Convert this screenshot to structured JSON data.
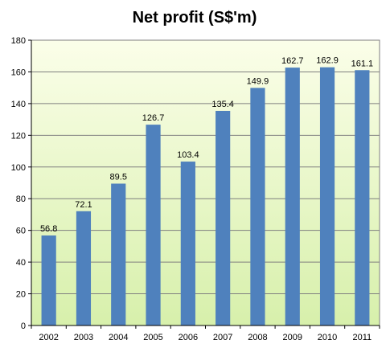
{
  "chart_data": {
    "type": "bar",
    "title": "Net profit (S$'m)",
    "xlabel": "",
    "ylabel": "",
    "categories": [
      "2002",
      "2003",
      "2004",
      "2005",
      "2006",
      "2007",
      "2008",
      "2009",
      "2010",
      "2011"
    ],
    "values": [
      56.8,
      72.1,
      89.5,
      126.7,
      103.4,
      135.4,
      149.9,
      162.7,
      162.9,
      161.1
    ],
    "data_labels": [
      "56.8",
      "72.1",
      "89.5",
      "126.7",
      "103.4",
      "135.4",
      "149.9",
      "162.7",
      "162.9",
      "161.1"
    ],
    "ylim": [
      0,
      180
    ],
    "y_ticks": [
      "0",
      "20",
      "40",
      "60",
      "80",
      "100",
      "120",
      "140",
      "160",
      "180"
    ],
    "grid": true,
    "legend": "none",
    "colors": {
      "bar": "#4f81bd",
      "plot_bg_top": "#fbfee9",
      "plot_bg_bottom": "#d7f0ab",
      "grid": "#7f7f7f"
    }
  }
}
